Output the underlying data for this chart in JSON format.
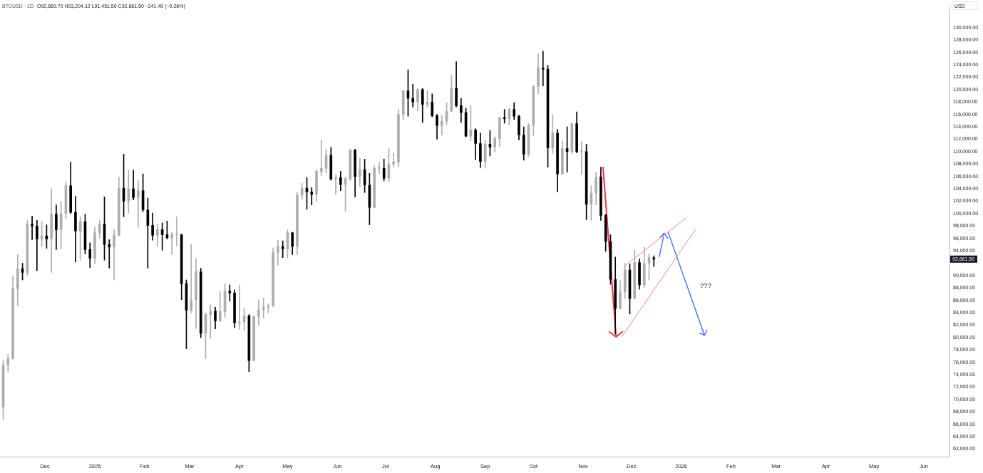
{
  "chart_data": {
    "type": "candlestick",
    "title": "BTCUSD · 1D",
    "subtitle": "O92,869.70 H93,204.10 L91,451.50 C92,661.50 −241.40 (−0.26%)",
    "ylabel": "USD",
    "xlim": [
      "2024-11-03",
      "2026-06-17"
    ],
    "xticks": [
      {
        "value": "2024-12-01",
        "label": "Dec"
      },
      {
        "value": "2025-01-01",
        "label": "2025"
      },
      {
        "value": "2025-02-01",
        "label": "Feb"
      },
      {
        "value": "2025-03-01",
        "label": "Mar"
      },
      {
        "value": "2025-04-01",
        "label": "Apr"
      },
      {
        "value": "2025-05-01",
        "label": "May"
      },
      {
        "value": "2025-06-01",
        "label": "Jun"
      },
      {
        "value": "2025-07-01",
        "label": "Jul"
      },
      {
        "value": "2025-08-01",
        "label": "Aug"
      },
      {
        "value": "2025-09-01",
        "label": "Sep"
      },
      {
        "value": "2025-10-01",
        "label": "Oct"
      },
      {
        "value": "2025-11-01",
        "label": "Nov"
      },
      {
        "value": "2025-12-01",
        "label": "Dec"
      },
      {
        "value": "2026-01-01",
        "label": "2026"
      },
      {
        "value": "2026-02-01",
        "label": "Feb"
      },
      {
        "value": "2026-03-01",
        "label": "Mar"
      },
      {
        "value": "2026-04-01",
        "label": "Apr"
      },
      {
        "value": "2026-05-01",
        "label": "May"
      },
      {
        "value": "2026-06-01",
        "label": "Jun"
      }
    ],
    "ylim": [
      60800,
      133400
    ],
    "yticks": [
      {
        "value": 62000,
        "label": "62,000.00"
      },
      {
        "value": 64000,
        "label": "64,000.00"
      },
      {
        "value": 66000,
        "label": "66,000.00"
      },
      {
        "value": 68000,
        "label": "68,000.00"
      },
      {
        "value": 70000,
        "label": "70,000.00"
      },
      {
        "value": 72000,
        "label": "72,000.00"
      },
      {
        "value": 74000,
        "label": "74,000.00"
      },
      {
        "value": 76000,
        "label": "76,000.00"
      },
      {
        "value": 78000,
        "label": "78,000.00"
      },
      {
        "value": 80000,
        "label": "80,000.00"
      },
      {
        "value": 82000,
        "label": "82,000.00"
      },
      {
        "value": 84000,
        "label": "84,000.00"
      },
      {
        "value": 86000,
        "label": "86,000.00"
      },
      {
        "value": 88000,
        "label": "88,000.00"
      },
      {
        "value": 90000,
        "label": "90,000.00"
      },
      {
        "value": 94000,
        "label": "94,000.00"
      },
      {
        "value": 96000,
        "label": "96,000.00"
      },
      {
        "value": 98000,
        "label": "98,000.00"
      },
      {
        "value": 100000,
        "label": "100,000.00"
      },
      {
        "value": 102000,
        "label": "102,000.00"
      },
      {
        "value": 104000,
        "label": "104,000.00"
      },
      {
        "value": 106000,
        "label": "106,000.00"
      },
      {
        "value": 108000,
        "label": "108,000.00"
      },
      {
        "value": 110000,
        "label": "110,000.00"
      },
      {
        "value": 112000,
        "label": "112,000.00"
      },
      {
        "value": 114000,
        "label": "114,000.00"
      },
      {
        "value": 116000,
        "label": "116,000.00"
      },
      {
        "value": 118000,
        "label": "118,000.00"
      },
      {
        "value": 120000,
        "label": "120,000.00"
      },
      {
        "value": 122000,
        "label": "122,000.00"
      },
      {
        "value": 124000,
        "label": "124,000.00"
      },
      {
        "value": 126000,
        "label": "126,000.00"
      },
      {
        "value": 128000,
        "label": "128,000.00"
      },
      {
        "value": 130000,
        "label": "130,000.00"
      }
    ],
    "series": [
      {
        "colors": [
          "#adadad",
          "#adadad",
          "#adadad",
          "#adadad",
          "#000000",
          "#adadad",
          "#000000",
          "#000000",
          "#adadad",
          "#000000",
          "#adadad",
          "#000000",
          "#adadad",
          "#adadad",
          "#000000",
          "#000000",
          "#adadad",
          "#000000",
          "#000000",
          "#adadad",
          "#adadad",
          "#000000",
          "#000000",
          "#adadad",
          "#adadad",
          "#000000",
          "#adadad",
          "#000000",
          "#adadad",
          "#000000",
          "#000000",
          "#000000",
          "#adadad",
          "#000000",
          "#000000",
          "#adadad",
          "#adadad",
          "#000000",
          "#000000",
          "#adadad",
          "#adadad",
          "#000000",
          "#adadad",
          "#adadad",
          "#000000",
          "#adadad",
          "#adadad",
          "#000000",
          "#000000",
          "#adadad",
          "#adadad",
          "#000000",
          "#adadad",
          "#adadad",
          "#adadad",
          "#adadad",
          "#adadad",
          "#adadad",
          "#000000",
          "#adadad",
          "#000000",
          "#adadad",
          "#adadad",
          "#000000",
          "#000000",
          "#adadad",
          "#adadad",
          "#adadad",
          "#000000",
          "#adadad",
          "#000000",
          "#adadad",
          "#adadad",
          "#000000",
          "#adadad",
          "#000000",
          "#000000",
          "#adadad",
          "#adadad",
          "#000000",
          "#adadad",
          "#adadad",
          "#adadad",
          "#adadad",
          "#000000",
          "#000000",
          "#adadad",
          "#000000",
          "#adadad",
          "#000000",
          "#000000",
          "#adadad",
          "#adadad",
          "#adadad",
          "#000000",
          "#000000",
          "#000000",
          "#adadad",
          "#000000",
          "#000000",
          "#adadad",
          "#000000",
          "#adadad",
          "#adadad",
          "#000000",
          "#adadad",
          "#000000",
          "#000000",
          "#000000",
          "#adadad",
          "#adadad",
          "#adadad",
          "#000000",
          "#000000",
          "#adadad",
          "#000000",
          "#adadad",
          "#000000",
          "#adadad",
          "#000000",
          "#adadad",
          "#000000",
          "#adadad",
          "#adadad",
          "#000000",
          "#000000",
          "#000000",
          "#000000",
          "#adadad",
          "#adadad",
          "#000000",
          "#adadad",
          "#000000",
          "#adadad",
          "#adadad",
          "#000000"
        ],
        "x": [
          "2024-11-05",
          "2024-11-08",
          "2024-11-11",
          "2024-11-14",
          "2024-11-17",
          "2024-11-20",
          "2024-11-23",
          "2024-11-26",
          "2024-11-29",
          "2024-12-02",
          "2024-12-05",
          "2024-12-08",
          "2024-12-11",
          "2024-12-14",
          "2024-12-17",
          "2024-12-20",
          "2024-12-23",
          "2024-12-26",
          "2024-12-29",
          "2025-01-01",
          "2025-01-04",
          "2025-01-07",
          "2025-01-10",
          "2025-01-13",
          "2025-01-16",
          "2025-01-19",
          "2025-01-22",
          "2025-01-25",
          "2025-01-28",
          "2025-01-31",
          "2025-02-03",
          "2025-02-06",
          "2025-02-09",
          "2025-02-12",
          "2025-02-15",
          "2025-02-18",
          "2025-02-21",
          "2025-02-24",
          "2025-02-27",
          "2025-03-02",
          "2025-03-05",
          "2025-03-08",
          "2025-03-11",
          "2025-03-14",
          "2025-03-17",
          "2025-03-20",
          "2025-03-23",
          "2025-03-26",
          "2025-03-29",
          "2025-04-01",
          "2025-04-04",
          "2025-04-07",
          "2025-04-10",
          "2025-04-13",
          "2025-04-16",
          "2025-04-19",
          "2025-04-22",
          "2025-04-25",
          "2025-04-28",
          "2025-05-01",
          "2025-05-04",
          "2025-05-07",
          "2025-05-10",
          "2025-05-13",
          "2025-05-16",
          "2025-05-19",
          "2025-05-22",
          "2025-05-25",
          "2025-05-28",
          "2025-05-31",
          "2025-06-03",
          "2025-06-06",
          "2025-06-09",
          "2025-06-12",
          "2025-06-15",
          "2025-06-18",
          "2025-06-21",
          "2025-06-24",
          "2025-06-27",
          "2025-06-30",
          "2025-07-03",
          "2025-07-06",
          "2025-07-09",
          "2025-07-12",
          "2025-07-15",
          "2025-07-18",
          "2025-07-21",
          "2025-07-24",
          "2025-07-27",
          "2025-07-30",
          "2025-08-02",
          "2025-08-05",
          "2025-08-08",
          "2025-08-11",
          "2025-08-14",
          "2025-08-17",
          "2025-08-20",
          "2025-08-23",
          "2025-08-26",
          "2025-08-29",
          "2025-09-01",
          "2025-09-04",
          "2025-09-07",
          "2025-09-10",
          "2025-09-13",
          "2025-09-16",
          "2025-09-19",
          "2025-09-22",
          "2025-09-25",
          "2025-09-28",
          "2025-10-01",
          "2025-10-04",
          "2025-10-07",
          "2025-10-10",
          "2025-10-13",
          "2025-10-16",
          "2025-10-19",
          "2025-10-22",
          "2025-10-25",
          "2025-10-28",
          "2025-10-31",
          "2025-11-03",
          "2025-11-06",
          "2025-11-09",
          "2025-11-12",
          "2025-11-15",
          "2025-11-18",
          "2025-11-21",
          "2025-11-24",
          "2025-11-27",
          "2025-11-30",
          "2025-12-03",
          "2025-12-06",
          "2025-12-09",
          "2025-12-12",
          "2025-12-15"
        ],
        "ohlc": [
          [
            68800,
            76400,
            66800,
            75600
          ],
          [
            75600,
            77300,
            74400,
            76600
          ],
          [
            76600,
            89900,
            76500,
            87900
          ],
          [
            87900,
            93400,
            85100,
            91100
          ],
          [
            91100,
            92000,
            89300,
            90500
          ],
          [
            90500,
            98900,
            90000,
            98300
          ],
          [
            98300,
            99600,
            95800,
            98000
          ],
          [
            98000,
            98900,
            90800,
            95900
          ],
          [
            95900,
            98700,
            94700,
            96400
          ],
          [
            96400,
            98200,
            94400,
            95900
          ],
          [
            95900,
            104000,
            90500,
            99900
          ],
          [
            99900,
            101400,
            94200,
            97400
          ],
          [
            97400,
            102000,
            94300,
            100000
          ],
          [
            100000,
            105100,
            99200,
            104500
          ],
          [
            104500,
            108300,
            100000,
            100200
          ],
          [
            100200,
            102800,
            92200,
            97200
          ],
          [
            97200,
            99500,
            92500,
            98700
          ],
          [
            98700,
            99900,
            93500,
            94200
          ],
          [
            94200,
            95300,
            91300,
            92800
          ],
          [
            92800,
            97800,
            91900,
            96900
          ],
          [
            96900,
            98900,
            96000,
            98300
          ],
          [
            98300,
            102700,
            92500,
            95000
          ],
          [
            95000,
            95800,
            91200,
            94600
          ],
          [
            94600,
            97400,
            89300,
            96500
          ],
          [
            96500,
            105900,
            96400,
            104100
          ],
          [
            104100,
            109600,
            99500,
            102000
          ],
          [
            102000,
            107000,
            100100,
            104000
          ],
          [
            104000,
            107000,
            102200,
            102600
          ],
          [
            102600,
            105300,
            97800,
            103700
          ],
          [
            103700,
            106400,
            100300,
            100600
          ],
          [
            100600,
            102500,
            91200,
            98100
          ],
          [
            98100,
            100100,
            95700,
            96500
          ],
          [
            96500,
            98400,
            94800,
            97400
          ],
          [
            97400,
            98500,
            94100,
            96600
          ],
          [
            96600,
            98800,
            95900,
            96100
          ],
          [
            96100,
            97000,
            93400,
            96600
          ],
          [
            96600,
            99500,
            94800,
            96600
          ],
          [
            96600,
            96700,
            86100,
            88700
          ],
          [
            88700,
            89300,
            78200,
            84400
          ],
          [
            84400,
            95000,
            84000,
            86100
          ],
          [
            86100,
            92800,
            81500,
            90600
          ],
          [
            90600,
            91200,
            80000,
            80700
          ],
          [
            80700,
            84000,
            76600,
            83700
          ],
          [
            83700,
            85300,
            79900,
            84300
          ],
          [
            84300,
            84900,
            81400,
            82700
          ],
          [
            82700,
            87400,
            82600,
            84200
          ],
          [
            84200,
            88700,
            83200,
            87500
          ],
          [
            87500,
            88500,
            85900,
            87200
          ],
          [
            87200,
            87700,
            81600,
            82400
          ],
          [
            82400,
            88500,
            81300,
            82500
          ],
          [
            82500,
            84700,
            81200,
            83500
          ],
          [
            83500,
            83700,
            74500,
            76300
          ],
          [
            76300,
            83500,
            76200,
            83400
          ],
          [
            83400,
            86100,
            82000,
            84500
          ],
          [
            84500,
            86400,
            83200,
            84900
          ],
          [
            84900,
            85500,
            84000,
            85100
          ],
          [
            85100,
            94500,
            85000,
            93700
          ],
          [
            93700,
            95700,
            91700,
            94700
          ],
          [
            94700,
            95600,
            92900,
            94300
          ],
          [
            94300,
            97400,
            92900,
            96900
          ],
          [
            96900,
            97000,
            93400,
            94700
          ],
          [
            94700,
            103400,
            93400,
            103000
          ],
          [
            103000,
            104900,
            102300,
            104100
          ],
          [
            104100,
            105800,
            100700,
            103500
          ],
          [
            103500,
            104200,
            101400,
            103100
          ],
          [
            103100,
            107100,
            102000,
            106800
          ],
          [
            106800,
            111900,
            106100,
            107300
          ],
          [
            107300,
            110400,
            106600,
            109400
          ],
          [
            109400,
            110700,
            105400,
            105600
          ],
          [
            105600,
            106300,
            103100,
            105800
          ],
          [
            105800,
            106800,
            103700,
            104700
          ],
          [
            104700,
            105900,
            100400,
            105600
          ],
          [
            105600,
            110400,
            105300,
            110200
          ],
          [
            110200,
            110400,
            102700,
            106000
          ],
          [
            106000,
            108900,
            104400,
            107100
          ],
          [
            107100,
            108800,
            103400,
            104600
          ],
          [
            104600,
            106500,
            98200,
            101000
          ],
          [
            101000,
            107700,
            100900,
            107300
          ],
          [
            107300,
            108300,
            106400,
            107300
          ],
          [
            107300,
            108800,
            105300,
            105700
          ],
          [
            105700,
            110500,
            105100,
            108000
          ],
          [
            108000,
            109700,
            107500,
            108300
          ],
          [
            108300,
            116800,
            107500,
            116000
          ],
          [
            116000,
            119900,
            115200,
            119800
          ],
          [
            119800,
            123200,
            115700,
            118600
          ],
          [
            118600,
            120900,
            117200,
            118000
          ],
          [
            118000,
            120200,
            116600,
            120000
          ],
          [
            120000,
            120200,
            114700,
            117600
          ],
          [
            117600,
            119800,
            117200,
            118000
          ],
          [
            118000,
            119300,
            115600,
            115800
          ],
          [
            115800,
            116000,
            112000,
            114200
          ],
          [
            114200,
            115800,
            112700,
            114900
          ],
          [
            114900,
            117900,
            114300,
            116500
          ],
          [
            116500,
            122300,
            116400,
            120200
          ],
          [
            120200,
            124500,
            117200,
            117400
          ],
          [
            117400,
            118600,
            114700,
            116300
          ],
          [
            116300,
            117000,
            112400,
            112500
          ],
          [
            112500,
            117400,
            111700,
            113500
          ],
          [
            113500,
            113700,
            108700,
            111300
          ],
          [
            111300,
            113000,
            107400,
            108400
          ],
          [
            108400,
            111800,
            107300,
            111200
          ],
          [
            111200,
            113400,
            109300,
            110700
          ],
          [
            110700,
            112400,
            110000,
            112100
          ],
          [
            112100,
            115600,
            110800,
            115500
          ],
          [
            115500,
            116800,
            114600,
            115300
          ],
          [
            115300,
            117000,
            114300,
            116800
          ],
          [
            116800,
            117900,
            115200,
            115700
          ],
          [
            115700,
            115900,
            111900,
            112700
          ],
          [
            112700,
            114000,
            108600,
            109600
          ],
          [
            109600,
            114500,
            109200,
            114300
          ],
          [
            114300,
            120700,
            112600,
            120500
          ],
          [
            120500,
            125800,
            119300,
            123500
          ],
          [
            123500,
            126200,
            120600,
            123300
          ],
          [
            123300,
            123900,
            107500,
            110600
          ],
          [
            110600,
            116000,
            109700,
            113000
          ],
          [
            113000,
            113600,
            103500,
            106400
          ],
          [
            106400,
            111700,
            106300,
            110500
          ],
          [
            110500,
            114000,
            106700,
            110000
          ],
          [
            110000,
            114600,
            109700,
            114500
          ],
          [
            114500,
            116400,
            109800,
            110000
          ],
          [
            110000,
            111600,
            106300,
            110000
          ],
          [
            110000,
            111200,
            99000,
            101500
          ],
          [
            101500,
            104500,
            98900,
            103300
          ],
          [
            103300,
            106600,
            101400,
            105900
          ],
          [
            105900,
            107500,
            98900,
            99700
          ],
          [
            99700,
            99900,
            93900,
            95500
          ],
          [
            95500,
            96600,
            88600,
            89400
          ],
          [
            89400,
            93000,
            80600,
            84700
          ],
          [
            84700,
            89200,
            84600,
            87400
          ],
          [
            87400,
            92000,
            86300,
            90900
          ],
          [
            90900,
            91900,
            83800,
            86300
          ],
          [
            86300,
            94100,
            86200,
            92100
          ],
          [
            92100,
            92700,
            87800,
            88500
          ],
          [
            88500,
            94600,
            88000,
            92000
          ],
          [
            92000,
            93500,
            89300,
            92900
          ],
          [
            92869.7,
            93204.1,
            91451.5,
            92661.5
          ]
        ]
      },
      {
        "type": "line",
        "color": "#f5818a",
        "x": [
          "2025-11-27",
          "2026-01-04"
        ],
        "values": [
          91600,
          99300
        ]
      },
      {
        "type": "line",
        "color": "#f5818a",
        "x": [
          "2025-11-25",
          "2026-01-10"
        ],
        "values": [
          80100,
          97500
        ]
      }
    ],
    "annotations": [
      "???",
      "92,661.50"
    ]
  }
}
